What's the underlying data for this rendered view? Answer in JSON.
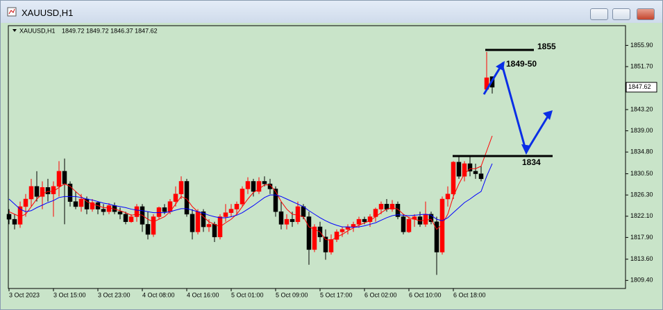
{
  "window": {
    "title": "XAUUSD,H1"
  },
  "chart_data": {
    "type": "candlestick",
    "symbol": "XAUUSD,H1",
    "ohlc_text": "1849.72 1849.72 1846.37 1847.62",
    "categories": [
      "3 Oct 2023",
      null,
      null,
      null,
      null,
      null,
      null,
      null,
      "3 Oct 15:00",
      null,
      null,
      null,
      null,
      null,
      null,
      null,
      "3 Oct 23:00",
      null,
      null,
      null,
      null,
      null,
      null,
      null,
      "4 Oct 08:00",
      null,
      null,
      null,
      null,
      null,
      null,
      null,
      "4 Oct 16:00",
      null,
      null,
      null,
      null,
      null,
      null,
      null,
      "5 Oct 01:00",
      null,
      null,
      null,
      null,
      null,
      null,
      null,
      "5 Oct 09:00",
      null,
      null,
      null,
      null,
      null,
      null,
      null,
      "5 Oct 17:00",
      null,
      null,
      null,
      null,
      null,
      null,
      null,
      "6 Oct 02:00",
      null,
      null,
      null,
      null,
      null,
      null,
      null,
      "6 Oct 10:00",
      null,
      null,
      null,
      null,
      null,
      null,
      null,
      "6 Oct 18:00",
      null,
      null,
      null,
      null,
      null,
      null,
      null
    ],
    "open": [
      1822.5,
      1821.5,
      1820.5,
      1824,
      1825.5,
      1828,
      1826,
      1827.8,
      1826.5,
      1828,
      1831,
      1828.5,
      1825,
      1824,
      1825.5,
      1823.5,
      1824.8,
      1823.5,
      1823,
      1824.2,
      1823,
      1822.5,
      1821,
      1822,
      1824,
      1820.5,
      1818.5,
      1822,
      1823.8,
      1823,
      1825,
      1826.5,
      1829,
      1822.5,
      1819,
      1823,
      1820,
      1820.5,
      1818,
      1822,
      1822.8,
      1823.5,
      1824.5,
      1827.5,
      1829,
      1827,
      1829,
      1828.5,
      1827.5,
      1823,
      1820.5,
      1821.5,
      1821,
      1824,
      1822,
      1815.5,
      1820,
      1818,
      1815,
      1817.5,
      1819,
      1819.5,
      1820,
      1820.5,
      1821.5,
      1821,
      1822,
      1823.5,
      1824.5,
      1823.5,
      1824.5,
      1822,
      1819,
      1821.5,
      1822,
      1820.5,
      1822.5,
      1821,
      1815,
      1825.5,
      1826.5,
      1832.8,
      1830,
      1832.5,
      1831,
      1830.5,
      1847.2,
      1849.72
    ],
    "high": [
      1823.5,
      1822.5,
      1825,
      1826.5,
      1829.5,
      1831,
      1829,
      1829.5,
      1829,
      1833,
      1833.5,
      1829,
      1827,
      1826.5,
      1826,
      1825.5,
      1825,
      1824.5,
      1824.7,
      1824.8,
      1823.8,
      1823,
      1822.5,
      1824.5,
      1824.5,
      1823,
      1822.5,
      1824,
      1824.5,
      1825.5,
      1828,
      1830,
      1829.5,
      1823.5,
      1823.5,
      1823.5,
      1821.5,
      1821,
      1822.5,
      1824.5,
      1824.5,
      1825,
      1828,
      1829.8,
      1829.5,
      1829.8,
      1830,
      1829.5,
      1828,
      1825,
      1822.5,
      1823,
      1825,
      1824.5,
      1823,
      1820.5,
      1821,
      1819.5,
      1818.5,
      1819.5,
      1820,
      1820.5,
      1821,
      1822,
      1822,
      1822.5,
      1823.8,
      1825,
      1825.5,
      1825.3,
      1825,
      1822.5,
      1822,
      1822.5,
      1823,
      1825,
      1823,
      1822,
      1826,
      1828,
      1833,
      1834,
      1833,
      1834,
      1832.5,
      1832,
      1854.6,
      1849.72
    ],
    "low": [
      1820.5,
      1819.5,
      1819.8,
      1822,
      1824,
      1825,
      1823.5,
      1825,
      1822,
      1826,
      1820.5,
      1824,
      1823.5,
      1823,
      1822.5,
      1823,
      1822.5,
      1822.3,
      1822.5,
      1822.5,
      1821.5,
      1820.5,
      1820.8,
      1821,
      1819,
      1817.5,
      1818,
      1821.5,
      1822.5,
      1822.5,
      1824,
      1825.5,
      1822,
      1817.5,
      1818.5,
      1819,
      1819,
      1817,
      1817.5,
      1821,
      1822,
      1822.5,
      1824,
      1826.5,
      1826,
      1826.5,
      1828,
      1826.5,
      1822,
      1819.5,
      1819.5,
      1820,
      1820.5,
      1821.5,
      1812.5,
      1815,
      1817,
      1813.5,
      1814.5,
      1817,
      1818,
      1818.5,
      1819,
      1819.8,
      1820.5,
      1820,
      1821,
      1822.5,
      1823,
      1823,
      1821.5,
      1818.5,
      1818.8,
      1820,
      1820,
      1820,
      1820.5,
      1810.5,
      1814.5,
      1824,
      1825.5,
      1829.5,
      1829,
      1830,
      1829.5,
      1829,
      1847,
      1846.37
    ],
    "close": [
      1821.5,
      1820.5,
      1824,
      1825.5,
      1828,
      1826,
      1827.8,
      1826.5,
      1828,
      1831,
      1828.5,
      1825,
      1824,
      1825.5,
      1823.5,
      1824.8,
      1823.5,
      1823,
      1824.2,
      1823,
      1822.5,
      1821,
      1822,
      1824,
      1820.5,
      1818.5,
      1822,
      1823.8,
      1823,
      1825,
      1826.5,
      1829,
      1822.5,
      1819,
      1823,
      1820,
      1820.5,
      1818,
      1822,
      1822.8,
      1823.5,
      1824.5,
      1827.5,
      1829,
      1827,
      1829,
      1828.5,
      1827.5,
      1823,
      1820.5,
      1821.5,
      1821,
      1824,
      1822,
      1815.5,
      1820,
      1818,
      1815,
      1817.5,
      1819,
      1819.5,
      1820,
      1820.5,
      1821.5,
      1821,
      1822,
      1823.5,
      1824.5,
      1823.5,
      1824.5,
      1822,
      1819,
      1821.5,
      1822,
      1820.5,
      1822.5,
      1821,
      1815,
      1825.5,
      1826.5,
      1832.8,
      1830,
      1832.5,
      1831,
      1830.5,
      1829.5,
      1849.5,
      1847.62
    ],
    "color_up": "#ff0000",
    "color_down": "#000000",
    "series": [
      {
        "color": "#ff0000",
        "values": [
          1823,
          1822.5,
          1822,
          1822.5,
          1824,
          1825.5,
          1826.5,
          1827,
          1827,
          1827.8,
          1828.5,
          1828,
          1827,
          1826,
          1825,
          1824.5,
          1824.2,
          1823.8,
          1823.8,
          1823.5,
          1823.2,
          1822.8,
          1822.3,
          1822.5,
          1822.3,
          1821.5,
          1821,
          1821.5,
          1822,
          1823,
          1824.5,
          1826,
          1825.5,
          1824,
          1823,
          1822,
          1821,
          1820.5,
          1820,
          1820.8,
          1821.5,
          1822.5,
          1824,
          1825.5,
          1826.8,
          1827.5,
          1828.3,
          1828.3,
          1827,
          1825,
          1823.5,
          1822.5,
          1822.3,
          1822,
          1820,
          1819.5,
          1819,
          1817.5,
          1817.3,
          1818,
          1818.5,
          1819.2,
          1819.8,
          1820.3,
          1820.8,
          1821.2,
          1822,
          1822.8,
          1823.5,
          1823.8,
          1823.5,
          1822.5,
          1821.8,
          1821.5,
          1821.2,
          1821.3,
          1821.5,
          1819.5,
          1820.5,
          1822.5,
          1826,
          1828.5,
          1830.5,
          1831.5,
          1831.5,
          1832,
          1835,
          1838
        ]
      },
      {
        "color": "#0000ff",
        "values": [
          1825.5,
          1824.5,
          1823.5,
          1823,
          1823.2,
          1823.8,
          1824.3,
          1824.8,
          1825.2,
          1825.8,
          1826,
          1826,
          1826,
          1825.8,
          1825.5,
          1825.3,
          1825,
          1824.7,
          1824.5,
          1824.2,
          1824,
          1823.8,
          1823.5,
          1823.3,
          1823.2,
          1823,
          1822.8,
          1822.8,
          1822.8,
          1823,
          1823.3,
          1823.6,
          1823.6,
          1823.3,
          1823,
          1822.7,
          1822.3,
          1822,
          1821.8,
          1821.8,
          1822,
          1822.3,
          1822.8,
          1823.5,
          1824.2,
          1825,
          1825.8,
          1826.3,
          1826.3,
          1826,
          1825.5,
          1825,
          1824.5,
          1824,
          1823.2,
          1822.5,
          1821.8,
          1821.2,
          1820.7,
          1820.3,
          1820,
          1820,
          1819.9,
          1820,
          1820.2,
          1820.5,
          1820.8,
          1821.3,
          1821.8,
          1822.2,
          1822.4,
          1822.3,
          1822.2,
          1822.3,
          1822.4,
          1822.5,
          1822.3,
          1821.5,
          1821.2,
          1821.8,
          1822.8,
          1823.8,
          1824.8,
          1825.5,
          1826.3,
          1827,
          1830,
          1832.5
        ]
      }
    ],
    "ylim": [
      1807.8,
      1859.8
    ],
    "yticks": [
      {
        "value": 1855.9,
        "label": "1855.90"
      },
      {
        "value": 1851.7,
        "label": "1851.70"
      },
      {
        "value": 1843.2,
        "label": "1843.20"
      },
      {
        "value": 1839,
        "label": "1839.00"
      },
      {
        "value": 1834.8,
        "label": "1834.80"
      },
      {
        "value": 1830.5,
        "label": "1830.50"
      },
      {
        "value": 1826.3,
        "label": "1826.30"
      },
      {
        "value": 1822.1,
        "label": "1822.10"
      },
      {
        "value": 1817.9,
        "label": "1817.90"
      },
      {
        "value": 1813.6,
        "label": "1813.60"
      },
      {
        "value": 1809.4,
        "label": "1809.40"
      }
    ],
    "levels": [
      {
        "value": 1855
      },
      {
        "value": 1834
      }
    ],
    "annotation": "1849-50"
  }
}
